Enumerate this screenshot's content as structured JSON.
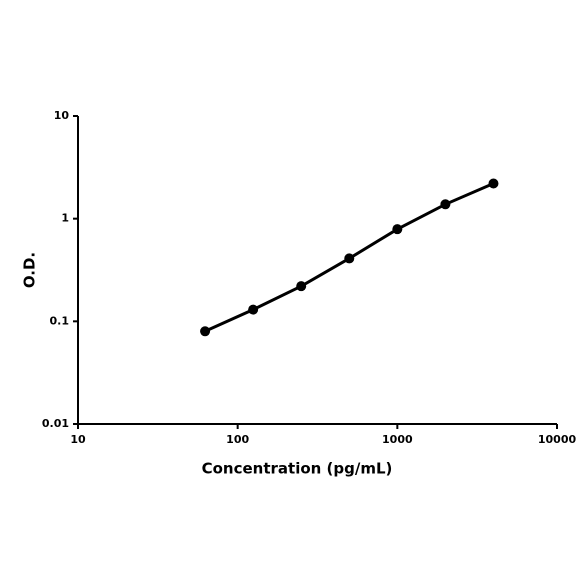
{
  "chart_data": {
    "type": "line",
    "x_label": "Concentration (pg/mL)",
    "y_label": "O.D.",
    "x": [
      62.5,
      125,
      250,
      500,
      1000,
      2000,
      4000
    ],
    "series": [
      {
        "color": "#000000",
        "values": [
          0.08,
          0.13,
          0.22,
          0.41,
          0.79,
          1.38,
          2.2
        ]
      }
    ],
    "xlim": [
      10,
      10000
    ],
    "xticks": [
      10,
      100,
      1000,
      10000
    ],
    "ylim": [
      0.01,
      10
    ],
    "yticks": [
      0.01,
      0.1,
      1,
      10
    ],
    "xscale": "log",
    "yscale": "log",
    "grid": false
  }
}
